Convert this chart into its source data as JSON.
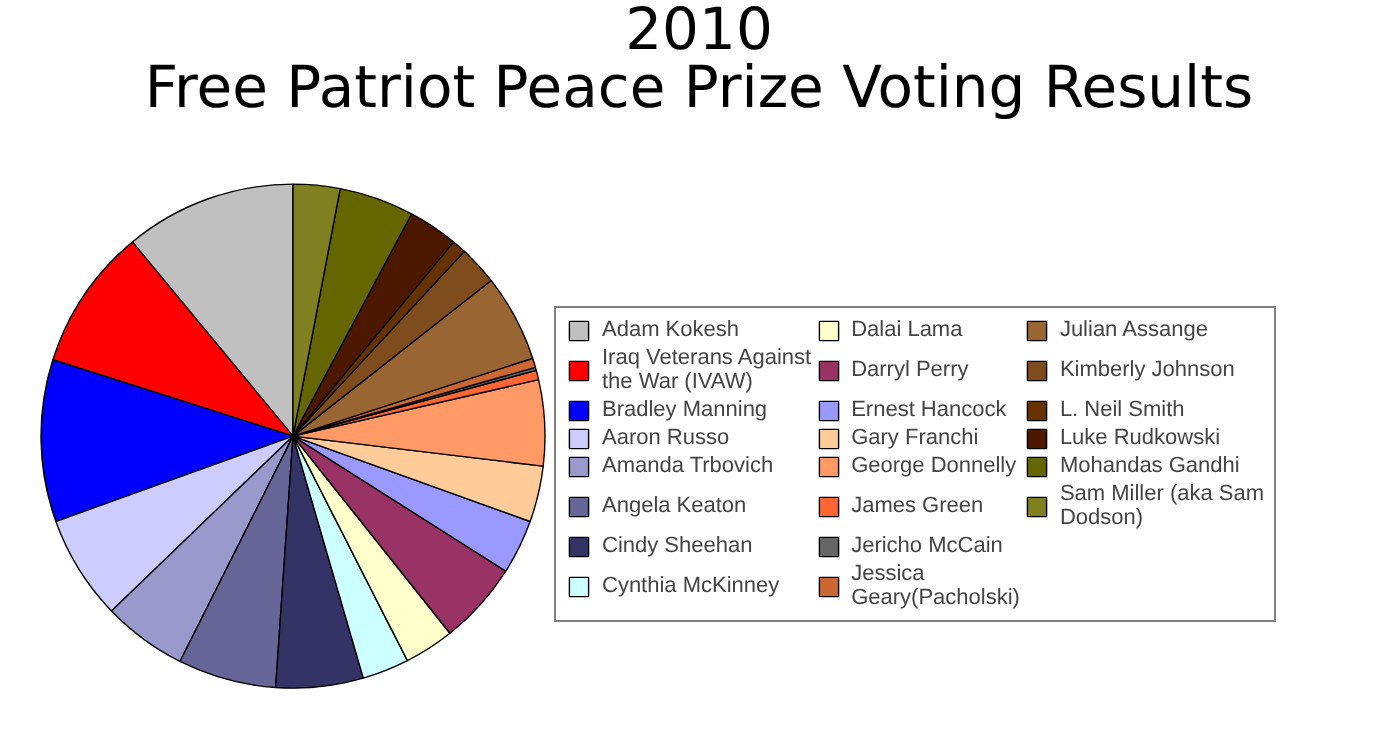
{
  "chart_data": {
    "type": "pie",
    "title": "2010",
    "subtitle": "Free Patriot Peace Prize Voting Results",
    "legend": "right",
    "categories": [
      "Adam Kokesh",
      "Iraq Veterans Against the War (IVAW)",
      "Bradley Manning",
      "Aaron Russo",
      "Amanda Trbovich",
      "Angela Keaton",
      "Cindy Sheehan",
      "Cynthia McKinney",
      "Dalai Lama",
      "Darryl Perry",
      "Ernest Hancock",
      "Gary Franchi",
      "George Donnelly",
      "James Green",
      "Jericho McCain",
      "Jessica Geary(Pacholski)",
      "Julian Assange",
      "Kimberly Johnson",
      "L. Neil Smith",
      "Luke Rudkowski",
      "Mohandas Gandhi",
      "Sam Miller (aka Sam Dodson)"
    ],
    "values": [
      11.0,
      9.1,
      10.4,
      6.7,
      5.4,
      6.3,
      5.6,
      3.0,
      3.2,
      5.3,
      3.5,
      3.6,
      5.5,
      0.6,
      0.2,
      0.6,
      5.6,
      2.5,
      0.9,
      3.2,
      4.8,
      3.0
    ],
    "colors": [
      "#c0c0c0",
      "#ff0000",
      "#0000ff",
      "#ccccff",
      "#9999cc",
      "#666699",
      "#333366",
      "#ccffff",
      "#ffffcc",
      "#993366",
      "#9999ff",
      "#ffcc99",
      "#ff9966",
      "#ff6633",
      "#666666",
      "#cc6633",
      "#996633",
      "#7f4c1e",
      "#663300",
      "#4c1900",
      "#666600",
      "#808020"
    ]
  }
}
